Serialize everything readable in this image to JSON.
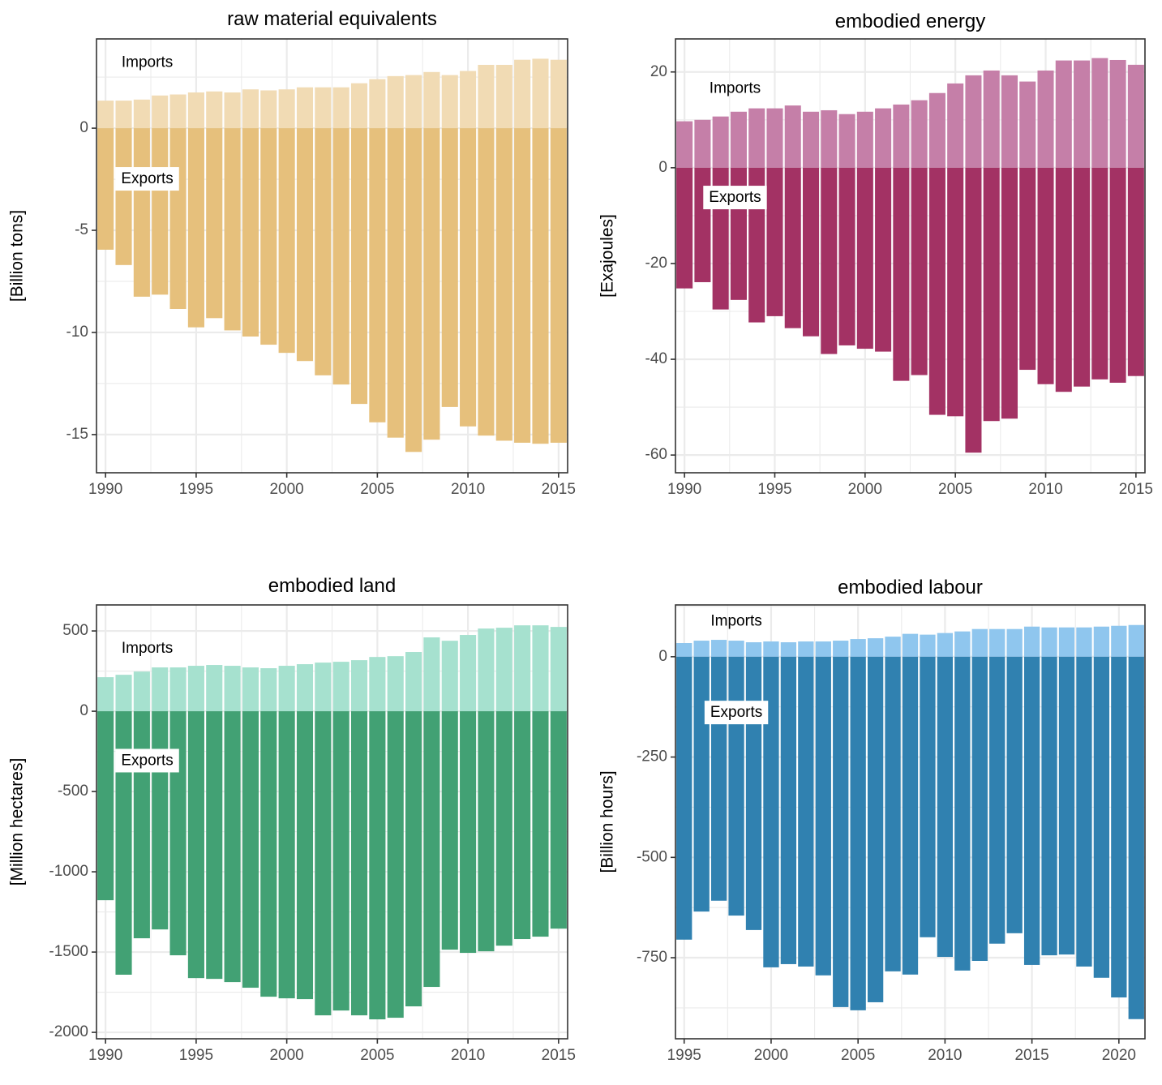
{
  "chart_data": [
    {
      "type": "bar",
      "title": "raw material equivalents",
      "xlabel": "",
      "ylabel": "[Billion tons]",
      "ylim": [
        -16.87,
        4.37
      ],
      "xlim": [
        1989.5,
        2015.5
      ],
      "yticks": [
        0,
        -5,
        -10,
        -15
      ],
      "ytick_labels": [
        "0",
        "-5",
        "-10",
        "-15"
      ],
      "xticks": [
        1990,
        1995,
        2000,
        2005,
        2010,
        2015
      ],
      "xtick_labels": [
        "1990",
        "1995",
        "2000",
        "2005",
        "2010",
        "2015"
      ],
      "grid": true,
      "x": [
        1990,
        1991,
        1992,
        1993,
        1994,
        1995,
        1996,
        1997,
        1998,
        1999,
        2000,
        2001,
        2002,
        2003,
        2004,
        2005,
        2006,
        2007,
        2008,
        2009,
        2010,
        2011,
        2012,
        2013,
        2014,
        2015
      ],
      "series": [
        {
          "name": "Imports",
          "color": "#f1dbb4",
          "values": [
            1.35,
            1.35,
            1.4,
            1.6,
            1.65,
            1.75,
            1.8,
            1.75,
            1.9,
            1.85,
            1.9,
            2.0,
            2.0,
            2.0,
            2.2,
            2.4,
            2.55,
            2.6,
            2.75,
            2.6,
            2.8,
            3.1,
            3.1,
            3.35,
            3.4,
            3.35
          ]
        },
        {
          "name": "Exports",
          "color": "#e6c07c",
          "values": [
            -5.95,
            -6.7,
            -8.25,
            -8.15,
            -8.85,
            -9.75,
            -9.3,
            -9.9,
            -10.2,
            -10.6,
            -11.0,
            -11.4,
            -12.1,
            -12.55,
            -13.5,
            -14.4,
            -15.15,
            -15.85,
            -15.25,
            -13.65,
            -14.6,
            -15.05,
            -15.3,
            -15.4,
            -15.45,
            -15.4
          ]
        }
      ],
      "annotations": [
        {
          "text": "Imports",
          "x": 1992.3,
          "y": 3.2,
          "boxed": false
        },
        {
          "text": "Exports",
          "x": 1992.3,
          "y": -2.5,
          "boxed": true
        }
      ]
    },
    {
      "type": "bar",
      "title": "embodied energy",
      "xlabel": "",
      "ylabel": "[Exajoules]",
      "ylim": [
        -63.7,
        26.9
      ],
      "xlim": [
        1989.5,
        2015.5
      ],
      "yticks": [
        20,
        0,
        -20,
        -40,
        -60
      ],
      "ytick_labels": [
        "20",
        "0",
        "-20",
        "-40",
        "-60"
      ],
      "xticks": [
        1990,
        1995,
        2000,
        2005,
        2010,
        2015
      ],
      "xtick_labels": [
        "1990",
        "1995",
        "2000",
        "2005",
        "2010",
        "2015"
      ],
      "grid": true,
      "x": [
        1990,
        1991,
        1992,
        1993,
        1994,
        1995,
        1996,
        1997,
        1998,
        1999,
        2000,
        2001,
        2002,
        2003,
        2004,
        2005,
        2006,
        2007,
        2008,
        2009,
        2010,
        2011,
        2012,
        2013,
        2014,
        2015
      ],
      "series": [
        {
          "name": "Imports",
          "color": "#c57fa8",
          "values": [
            9.7,
            10.0,
            10.7,
            11.7,
            12.4,
            12.4,
            13.0,
            11.7,
            12.0,
            11.2,
            11.7,
            12.4,
            13.2,
            14.1,
            15.6,
            17.6,
            19.3,
            20.3,
            19.3,
            18.0,
            20.3,
            22.4,
            22.4,
            22.9,
            22.5,
            21.5
          ]
        },
        {
          "name": "Exports",
          "color": "#a33264",
          "values": [
            -25.2,
            -23.9,
            -29.6,
            -27.6,
            -32.3,
            -31.0,
            -33.5,
            -35.2,
            -38.9,
            -37.1,
            -37.8,
            -38.4,
            -44.5,
            -43.3,
            -51.6,
            -51.9,
            -59.5,
            -52.9,
            -52.4,
            -42.2,
            -45.2,
            -46.8,
            -45.7,
            -44.2,
            -44.9,
            -43.5
          ]
        }
      ],
      "annotations": [
        {
          "text": "Imports",
          "x": 1992.8,
          "y": 16.5,
          "boxed": false
        },
        {
          "text": "Exports",
          "x": 1992.8,
          "y": -6.3,
          "boxed": true
        }
      ]
    },
    {
      "type": "bar",
      "title": "embodied land",
      "xlabel": "",
      "ylabel": "[Million hectares]",
      "ylim": [
        -2040,
        662
      ],
      "xlim": [
        1989.5,
        2015.5
      ],
      "yticks": [
        500,
        0,
        -500,
        -1000,
        -1500,
        -2000
      ],
      "ytick_labels": [
        "500",
        "0",
        "-500",
        "-1000",
        "-1500",
        "-2000"
      ],
      "xticks": [
        1990,
        1995,
        2000,
        2005,
        2010,
        2015
      ],
      "xtick_labels": [
        "1990",
        "1995",
        "2000",
        "2005",
        "2010",
        "2015"
      ],
      "grid": true,
      "x": [
        1990,
        1991,
        1992,
        1993,
        1994,
        1995,
        1996,
        1997,
        1998,
        1999,
        2000,
        2001,
        2002,
        2003,
        2004,
        2005,
        2006,
        2007,
        2008,
        2009,
        2010,
        2011,
        2012,
        2013,
        2014,
        2015
      ],
      "series": [
        {
          "name": "Imports",
          "color": "#a6e1cf",
          "values": [
            212,
            227,
            247,
            273,
            273,
            283,
            288,
            283,
            273,
            268,
            283,
            293,
            303,
            308,
            318,
            338,
            343,
            369,
            460,
            439,
            475,
            515,
            520,
            535,
            535,
            525
          ]
        },
        {
          "name": "Exports",
          "color": "#42a174",
          "values": [
            -1177,
            -1641,
            -1414,
            -1359,
            -1520,
            -1662,
            -1667,
            -1687,
            -1722,
            -1778,
            -1788,
            -1793,
            -1894,
            -1864,
            -1894,
            -1919,
            -1909,
            -1838,
            -1717,
            -1485,
            -1505,
            -1495,
            -1460,
            -1419,
            -1404,
            -1354
          ]
        }
      ],
      "annotations": [
        {
          "text": "Imports",
          "x": 1992.3,
          "y": 390,
          "boxed": false
        },
        {
          "text": "Exports",
          "x": 1992.3,
          "y": -310,
          "boxed": true
        }
      ]
    },
    {
      "type": "bar",
      "title": "embodied labour",
      "xlabel": "",
      "ylabel": "[Billion hours]",
      "ylim": [
        -952,
        129
      ],
      "xlim": [
        1994.5,
        2021.5
      ],
      "yticks": [
        0,
        -250,
        -500,
        -750
      ],
      "ytick_labels": [
        "0",
        "-250",
        "-500",
        "-750"
      ],
      "xticks": [
        1995,
        2000,
        2005,
        2010,
        2015,
        2020
      ],
      "xtick_labels": [
        "1995",
        "2000",
        "2005",
        "2010",
        "2015",
        "2020"
      ],
      "grid": true,
      "x": [
        1995,
        1996,
        1997,
        1998,
        1999,
        2000,
        2001,
        2002,
        2003,
        2004,
        2005,
        2006,
        2007,
        2008,
        2009,
        2010,
        2011,
        2012,
        2013,
        2014,
        2015,
        2016,
        2017,
        2018,
        2019,
        2020,
        2021
      ],
      "series": [
        {
          "name": "Imports",
          "color": "#8fc6ee",
          "values": [
            34,
            40,
            42,
            40,
            36,
            38,
            36,
            38,
            38,
            40,
            44,
            46,
            50,
            57,
            55,
            59,
            63,
            69,
            69,
            69,
            75,
            73,
            73,
            73,
            75,
            77,
            79
          ]
        },
        {
          "name": "Exports",
          "color": "#3081b0",
          "values": [
            -705,
            -635,
            -608,
            -645,
            -681,
            -774,
            -766,
            -772,
            -794,
            -873,
            -881,
            -861,
            -784,
            -792,
            -699,
            -748,
            -782,
            -758,
            -715,
            -689,
            -768,
            -744,
            -742,
            -772,
            -800,
            -849,
            -903
          ]
        }
      ],
      "annotations": [
        {
          "text": "Imports",
          "x": 1998.0,
          "y": 88,
          "boxed": false
        },
        {
          "text": "Exports",
          "x": 1998.0,
          "y": -140,
          "boxed": true
        }
      ]
    }
  ]
}
